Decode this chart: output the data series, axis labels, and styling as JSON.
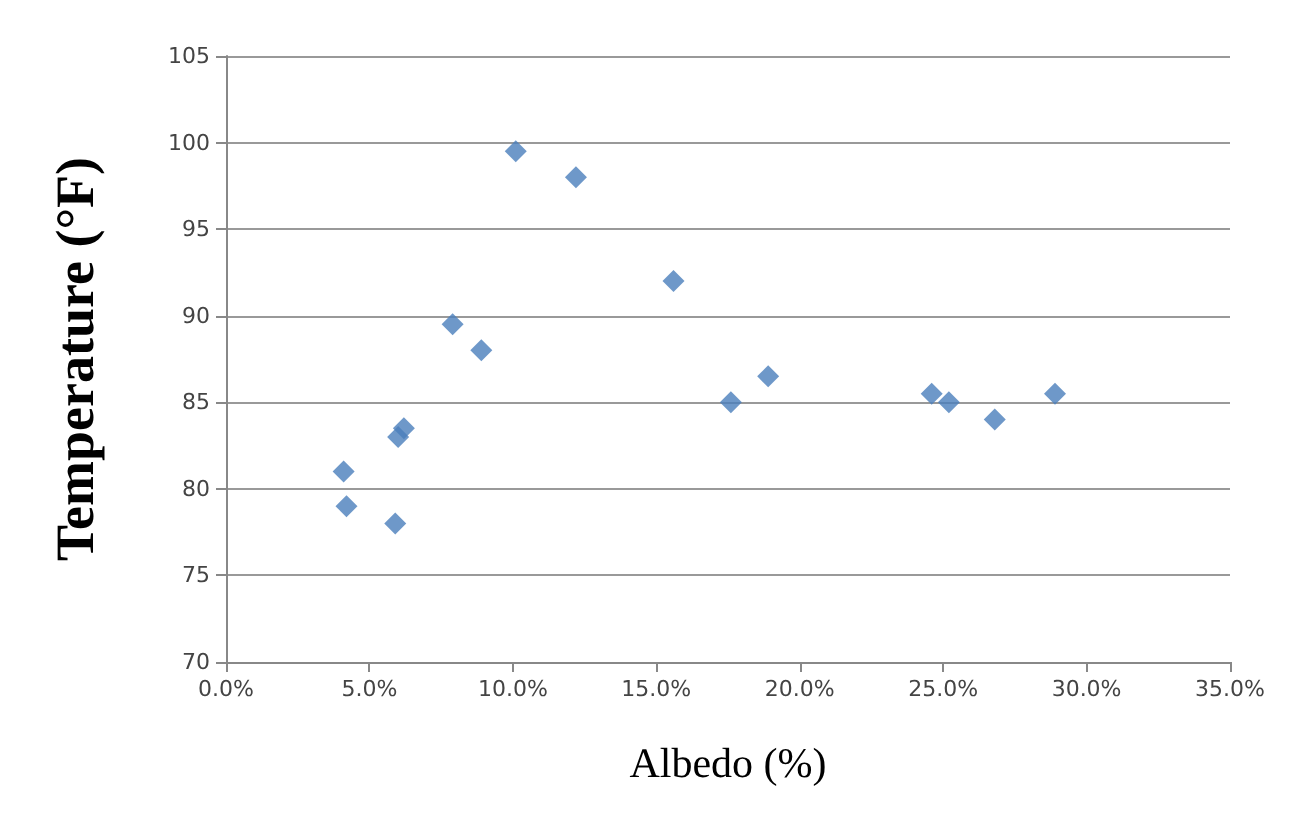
{
  "chart_data": {
    "type": "scatter",
    "xlabel": "Albedo (%)",
    "ylabel": "Temperature (°F)",
    "x": [
      4.1,
      4.2,
      5.9,
      6.0,
      6.2,
      7.9,
      8.9,
      10.1,
      12.2,
      15.6,
      17.6,
      18.9,
      24.6,
      25.2,
      26.8,
      28.9
    ],
    "values": [
      81,
      79,
      78,
      83,
      83.5,
      89.5,
      88,
      99.5,
      98,
      92,
      85,
      86.5,
      85.5,
      85,
      84,
      85.5
    ],
    "color": "#4a7ebb",
    "marker": "diamond",
    "grid": "y",
    "xlim": [
      0,
      35
    ],
    "xticks": [
      {
        "value": 0,
        "label": "0.0%"
      },
      {
        "value": 5,
        "label": "5.0%"
      },
      {
        "value": 10,
        "label": "10.0%"
      },
      {
        "value": 15,
        "label": "15.0%"
      },
      {
        "value": 20,
        "label": "20.0%"
      },
      {
        "value": 25,
        "label": "25.0%"
      },
      {
        "value": 30,
        "label": "30.0%"
      },
      {
        "value": 35,
        "label": "35.0%"
      }
    ],
    "ylim": [
      70,
      105
    ],
    "yticks": [
      70,
      75,
      80,
      85,
      90,
      95,
      100,
      105
    ]
  }
}
